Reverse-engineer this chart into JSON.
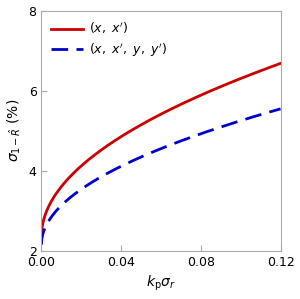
{
  "title": "",
  "xlabel": "$k_{\\mathrm{p}}\\sigma_r$",
  "ylabel": "$\\sigma_{1-\\hat{R}}$ (%)",
  "xlim": [
    0.0,
    0.12
  ],
  "ylim": [
    2.0,
    8.0
  ],
  "xticks": [
    0.0,
    0.04,
    0.08,
    0.12
  ],
  "yticks": [
    2,
    4,
    6,
    8
  ],
  "line2d_color": "#cc0000",
  "line4d_color": "#0000cc",
  "legend_2d": "$(x,\\ x^{\\prime})$",
  "legend_4d": "$(x,\\ x^{\\prime},\\ y,\\ y^{\\prime})$",
  "background_color": "#ffffff",
  "figsize": [
    3.0,
    2.99
  ],
  "dpi": 100,
  "red_a": 2.35,
  "red_b": 12.5,
  "red_exp": 0.5,
  "blue_a": 2.15,
  "blue_b": 9.8,
  "blue_exp": 0.5
}
